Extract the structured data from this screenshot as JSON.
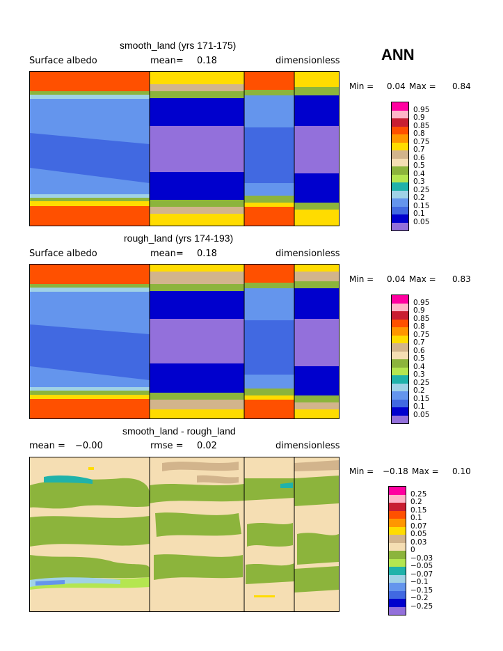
{
  "season": "ANN",
  "chart_data": [
    {
      "type": "heatmap",
      "title": "smooth_land (yrs 171-175)",
      "variable": "Surface albedo",
      "mean_label": "mean=",
      "mean": "0.18",
      "units": "dimensionless",
      "min_label": "Min =",
      "min": "0.04",
      "max_label": "Max =",
      "max": "0.84",
      "colorbar_levels": [
        "0.95",
        "0.9",
        "0.85",
        "0.8",
        "0.75",
        "0.7",
        "0.6",
        "0.5",
        "0.4",
        "0.3",
        "0.25",
        "0.2",
        "0.15",
        "0.1",
        "0.05"
      ],
      "colorbar_colors": [
        "#ff00a0",
        "#ffb6c8",
        "#c81e32",
        "#ff5000",
        "#ff9600",
        "#ffdc00",
        "#d2b48c",
        "#f5deb3",
        "#8cb43c",
        "#b4e650",
        "#20b2aa",
        "#a0d2e6",
        "#6495ed",
        "#4169e1",
        "#0000cd",
        "#9370db"
      ]
    },
    {
      "type": "heatmap",
      "title": "rough_land (yrs 174-193)",
      "variable": "Surface albedo",
      "mean_label": "mean=",
      "mean": "0.18",
      "units": "dimensionless",
      "min_label": "Min =",
      "min": "0.04",
      "max_label": "Max =",
      "max": "0.83",
      "colorbar_levels": [
        "0.95",
        "0.9",
        "0.85",
        "0.8",
        "0.75",
        "0.7",
        "0.6",
        "0.5",
        "0.4",
        "0.3",
        "0.25",
        "0.2",
        "0.15",
        "0.1",
        "0.05"
      ],
      "colorbar_colors": [
        "#ff00a0",
        "#ffb6c8",
        "#c81e32",
        "#ff5000",
        "#ff9600",
        "#ffdc00",
        "#d2b48c",
        "#f5deb3",
        "#8cb43c",
        "#b4e650",
        "#20b2aa",
        "#a0d2e6",
        "#6495ed",
        "#4169e1",
        "#0000cd",
        "#9370db"
      ]
    },
    {
      "type": "heatmap",
      "title": "smooth_land - rough_land",
      "mean_label": "mean =",
      "mean": "−0.00",
      "rmse_label": "rmse =",
      "rmse": "0.02",
      "units": "dimensionless",
      "min_label": "Min =",
      "min": "−0.18",
      "max_label": "Max =",
      "max": "0.10",
      "colorbar_levels": [
        "0.25",
        "0.2",
        "0.15",
        "0.1",
        "0.07",
        "0.05",
        "0.03",
        "0",
        "−0.03",
        "−0.05",
        "−0.07",
        "−0.1",
        "−0.15",
        "−0.2",
        "−0.25"
      ],
      "colorbar_colors": [
        "#ff00a0",
        "#ffb6c8",
        "#c81e32",
        "#ff5000",
        "#ff9600",
        "#ffdc00",
        "#d2b48c",
        "#f5deb3",
        "#8cb43c",
        "#b4e650",
        "#20b2aa",
        "#a0d2e6",
        "#6495ed",
        "#4169e1",
        "#0000cd",
        "#9370db"
      ]
    }
  ]
}
